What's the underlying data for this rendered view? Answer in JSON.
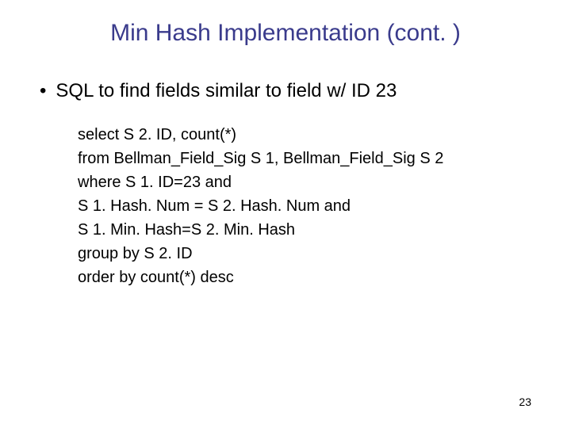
{
  "slide": {
    "title": "Min Hash Implementation (cont. )",
    "title_color": "#3a3b8c",
    "title_fontsize": 30,
    "bullet_text": "SQL to find fields similar to field w/ ID 23",
    "bullet_fontsize": 24,
    "code_fontsize": 20,
    "code_lines": [
      "select S 2. ID, count(*)",
      "from Bellman_Field_Sig S 1, Bellman_Field_Sig S 2",
      "where S 1. ID=23 and",
      "S 1. Hash. Num = S 2. Hash. Num and",
      "S 1. Min. Hash=S 2. Min. Hash",
      "group by S 2. ID",
      "order by count(*) desc"
    ],
    "page_number": "23",
    "page_number_fontsize": 14,
    "background_color": "#ffffff",
    "text_color": "#000000"
  }
}
